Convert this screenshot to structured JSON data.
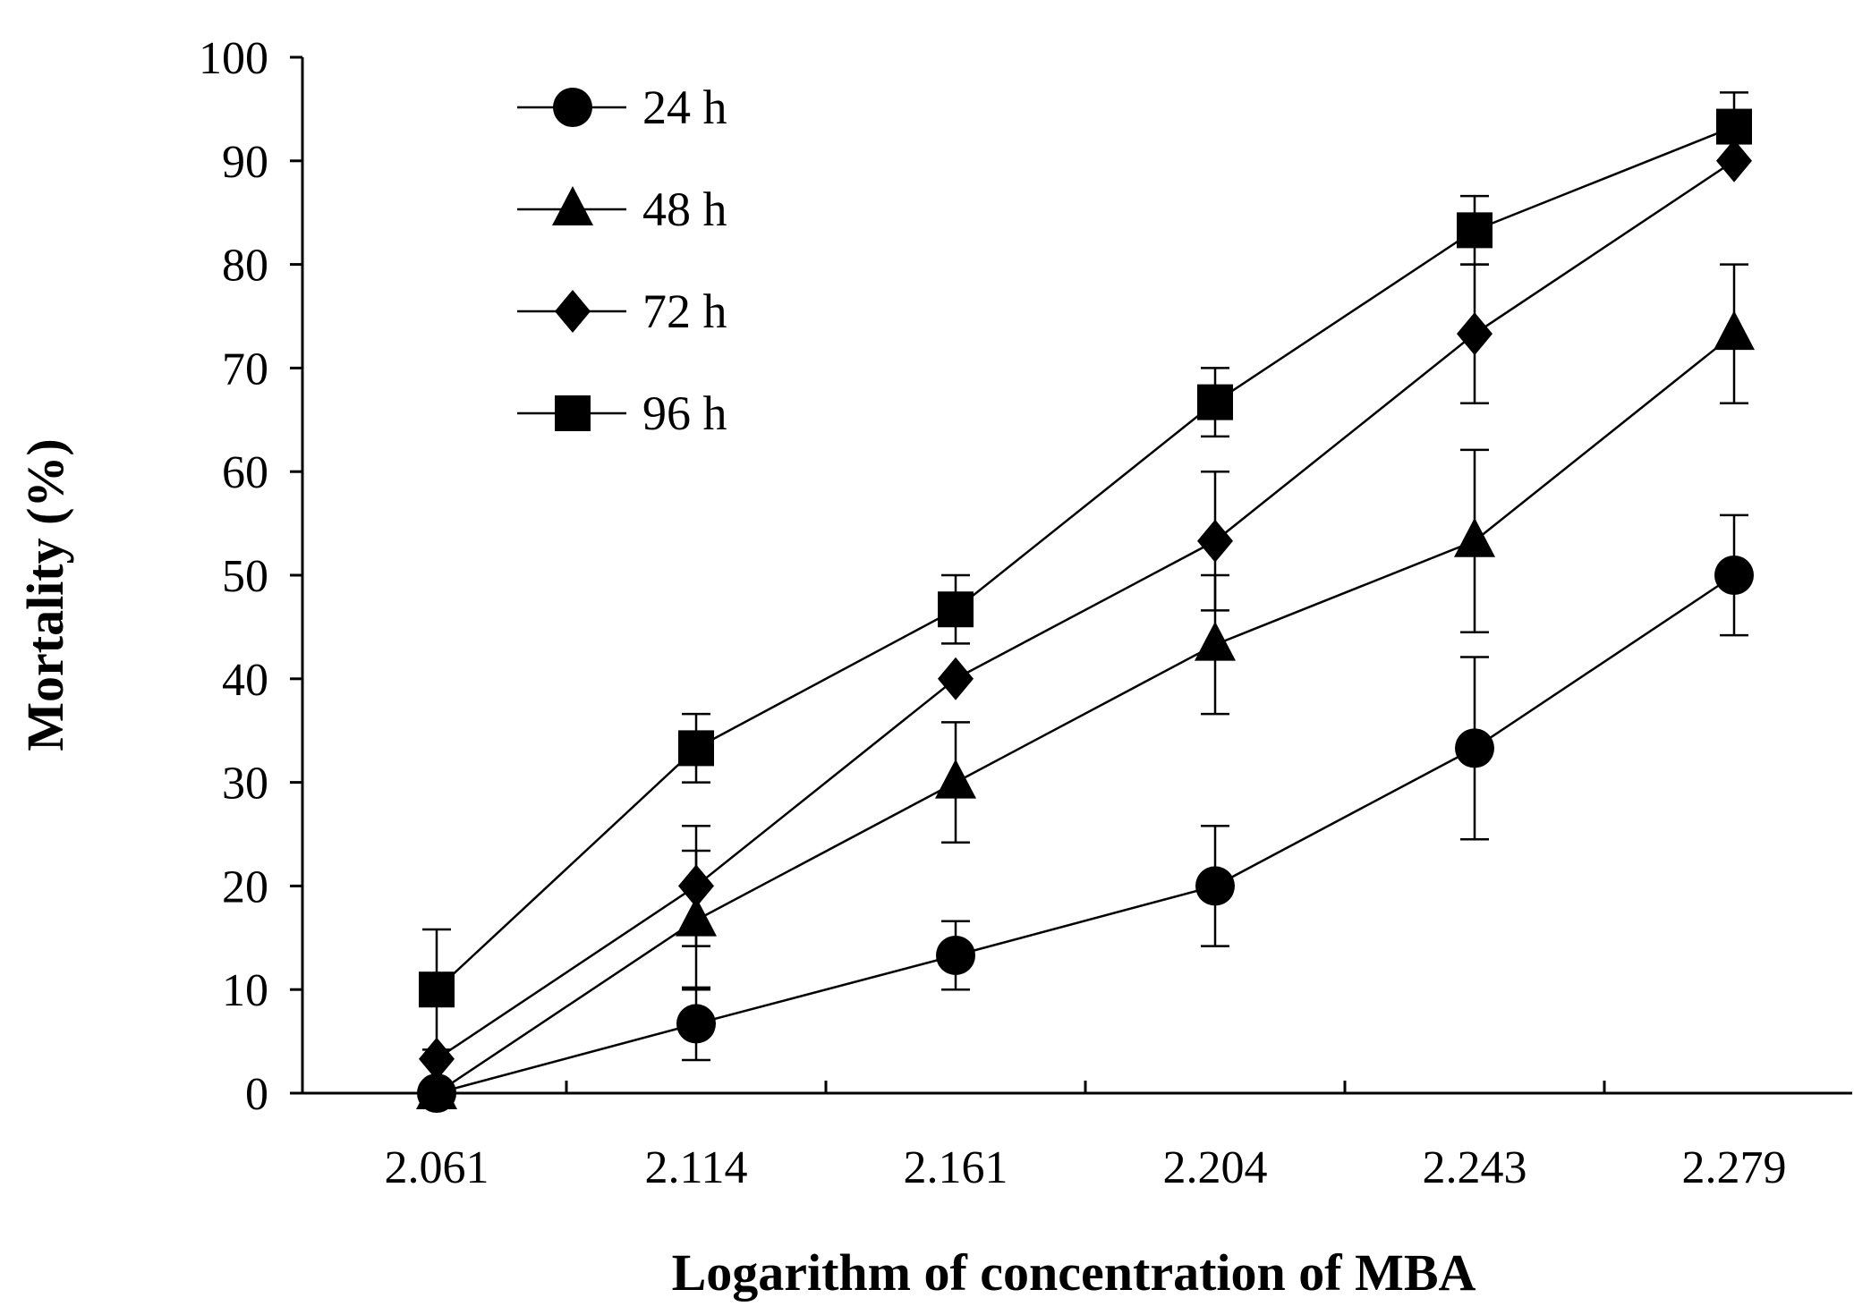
{
  "chart_data": {
    "type": "line",
    "title": "",
    "xlabel": "Logarithm of concentration of MBA",
    "ylabel": "Mortality  (%)",
    "categories": [
      "2.061",
      "2.114",
      "2.161",
      "2.204",
      "2.243",
      "2.279"
    ],
    "ylim": [
      0,
      100
    ],
    "yticks": [
      0,
      10,
      20,
      30,
      40,
      50,
      60,
      70,
      80,
      90,
      100
    ],
    "grid": false,
    "legend_position": "top-left",
    "series": [
      {
        "name": "24 h",
        "marker": "circle",
        "values": [
          0,
          6.7,
          13.3,
          20,
          33.3,
          50
        ],
        "errors": [
          0,
          3.5,
          3.3,
          5.8,
          8.8,
          5.8
        ]
      },
      {
        "name": "48 h",
        "marker": "triangle",
        "values": [
          0,
          16.7,
          30,
          43.3,
          53.3,
          73.3
        ],
        "errors": [
          0,
          6.7,
          5.8,
          6.7,
          8.8,
          6.7
        ]
      },
      {
        "name": "72 h",
        "marker": "diamond",
        "values": [
          3.3,
          20,
          40,
          53.3,
          73.3,
          90
        ],
        "errors": [
          0,
          5.8,
          0,
          6.7,
          6.7,
          0
        ]
      },
      {
        "name": "96 h",
        "marker": "square",
        "values": [
          10,
          33.3,
          46.7,
          66.7,
          83.3,
          93.3
        ],
        "errors": [
          5.8,
          3.3,
          3.3,
          3.3,
          3.3,
          3.3
        ]
      }
    ],
    "colors": {
      "line": "#000000",
      "marker": "#000000"
    }
  }
}
